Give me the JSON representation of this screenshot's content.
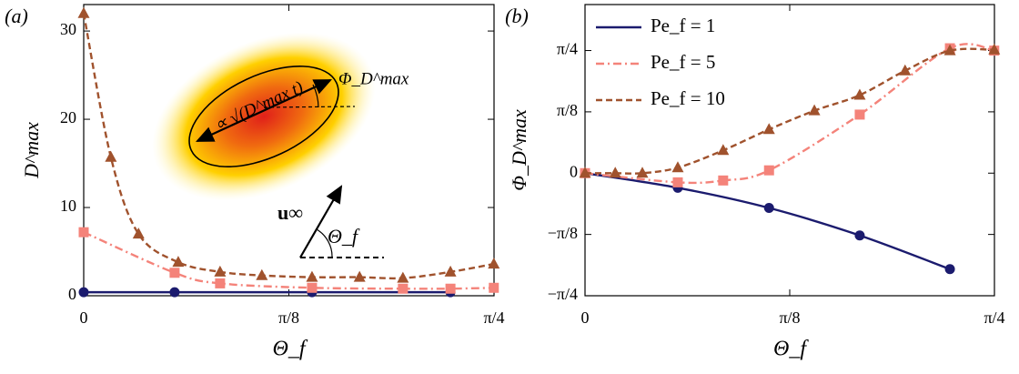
{
  "chart_data": [
    {
      "type": "line",
      "panel_label": "(a)",
      "xlabel": "Θ_f",
      "ylabel": "D^max",
      "xlim": [
        0,
        0.7854
      ],
      "ylim": [
        0,
        33
      ],
      "xticks": [
        0,
        {
          "value": 0.3927,
          "label": "π/8"
        },
        {
          "value": 0.7854,
          "label": "π/4"
        }
      ],
      "yticks": [
        0,
        10,
        20,
        30
      ],
      "annotations": [
        "∝ √(D^max t)",
        "Φ_D^max",
        "u∞",
        "Θ_f"
      ],
      "series": [
        {
          "color": "#1b1b6e",
          "marker": "circle",
          "dash": "solid",
          "x": [
            0,
            0.174,
            0.437,
            0.702
          ],
          "values": [
            0.4,
            0.4,
            0.4,
            0.4
          ]
        },
        {
          "color": "#f4837a",
          "marker": "square",
          "dash": "dashdot",
          "x": [
            0,
            0.174,
            0.261,
            0.437,
            0.611,
            0.702,
            0.785
          ],
          "values": [
            7.2,
            2.6,
            1.4,
            0.9,
            0.8,
            0.8,
            0.9
          ]
        },
        {
          "color": "#a0522d",
          "marker": "triangle",
          "dash": "dashed",
          "x": [
            0,
            0.052,
            0.105,
            0.181,
            0.261,
            0.341,
            0.437,
            0.528,
            0.611,
            0.702,
            0.785
          ],
          "values": [
            32,
            15.7,
            7.0,
            3.8,
            2.7,
            2.3,
            2.1,
            2.1,
            2.0,
            2.7,
            3.6
          ]
        }
      ]
    },
    {
      "type": "line",
      "panel_label": "(b)",
      "xlabel": "Θ_f",
      "ylabel": "Φ_D^max",
      "xlim": [
        0,
        0.7854
      ],
      "ylim": [
        -0.7854,
        1.08
      ],
      "xticks": [
        0,
        {
          "value": 0.3927,
          "label": "π/8"
        },
        {
          "value": 0.7854,
          "label": "π/4"
        }
      ],
      "yticks": [
        {
          "value": -0.7854,
          "label": "−π/4"
        },
        {
          "value": -0.3927,
          "label": "−π/8"
        },
        0,
        {
          "value": 0.3927,
          "label": "π/8"
        },
        {
          "value": 0.7854,
          "label": "π/4"
        }
      ],
      "legend": "upper left",
      "series": [
        {
          "name": "Pe_f = 1",
          "color": "#1b1b6e",
          "marker": "circle",
          "dash": "solid",
          "x": [
            0,
            0.178,
            0.353,
            0.527,
            0.7
          ],
          "values": [
            0,
            -0.094,
            -0.223,
            -0.399,
            -0.615
          ]
        },
        {
          "name": "Pe_f = 5",
          "color": "#f4837a",
          "marker": "square",
          "dash": "dashdot",
          "x": [
            0,
            0.178,
            0.265,
            0.353,
            0.527,
            0.7,
            0.785
          ],
          "values": [
            0,
            -0.059,
            -0.047,
            0.018,
            0.375,
            0.8,
            0.785
          ]
        },
        {
          "name": "Pe_f = 10",
          "color": "#a0522d",
          "marker": "triangle",
          "dash": "dashed",
          "x": [
            0,
            0.058,
            0.11,
            0.178,
            0.265,
            0.353,
            0.44,
            0.527,
            0.614,
            0.7,
            0.785
          ],
          "values": [
            0,
            0,
            0,
            0.035,
            0.146,
            0.28,
            0.4,
            0.5,
            0.656,
            0.785,
            0.79
          ]
        }
      ]
    }
  ]
}
